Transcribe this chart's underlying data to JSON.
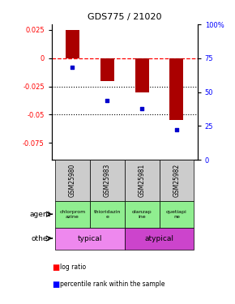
{
  "title": "GDS775 / 21020",
  "samples": [
    "GSM25980",
    "GSM25983",
    "GSM25981",
    "GSM25982"
  ],
  "log_ratios": [
    0.025,
    -0.02,
    -0.03,
    -0.055
  ],
  "percentile_ranks": [
    0.68,
    0.44,
    0.38,
    0.22
  ],
  "bar_color": "#aa0000",
  "dot_color": "#0000cc",
  "ylim_left": [
    -0.09,
    0.03
  ],
  "ylim_right": [
    0.0,
    1.0
  ],
  "yticks_left": [
    0.025,
    0.0,
    -0.025,
    -0.05,
    -0.075
  ],
  "ytick_labels_left": [
    "0.025",
    "0",
    "-0.025",
    "-0.05",
    "-0.075"
  ],
  "yticks_right": [
    1.0,
    0.75,
    0.5,
    0.25,
    0.0
  ],
  "ytick_labels_right": [
    "100%",
    "75",
    "50",
    "25",
    "0"
  ],
  "dotted_lines": [
    -0.025,
    -0.05
  ],
  "agent_labels": [
    "chlorprom\nazine",
    "thioridazin\ne",
    "olanzap\nine",
    "quetiapi\nne"
  ],
  "agent_bg_colors": [
    "#90ee90",
    "#90ee90",
    "#90ee90",
    "#90ee90"
  ],
  "typical_color": "#ee88ee",
  "atypical_color": "#cc44cc",
  "header_bg": "#cccccc",
  "bar_width": 0.4,
  "legend_red": "log ratio",
  "legend_blue": "percentile rank within the sample"
}
